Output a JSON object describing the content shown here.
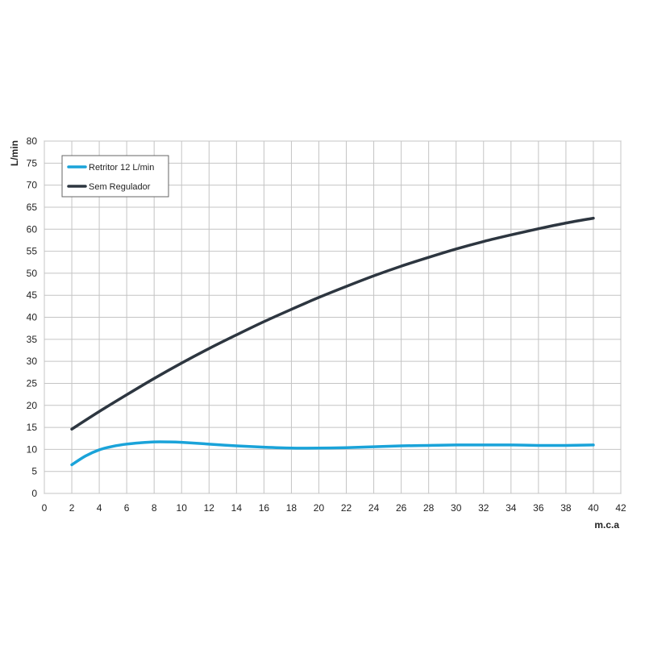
{
  "chart_data": {
    "type": "line",
    "xlabel": "m.c.a",
    "ylabel": "L/min",
    "xlim": [
      0,
      42
    ],
    "ylim": [
      0,
      80
    ],
    "x_ticks": [
      0,
      2,
      4,
      6,
      8,
      10,
      12,
      14,
      16,
      18,
      20,
      22,
      24,
      26,
      28,
      30,
      32,
      34,
      36,
      38,
      40,
      42
    ],
    "y_ticks": [
      0,
      5,
      10,
      15,
      20,
      25,
      30,
      35,
      40,
      45,
      50,
      55,
      60,
      65,
      70,
      75,
      80
    ],
    "grid": true,
    "legend_position": "top-left",
    "series": [
      {
        "name": "Retritor 12 L/min",
        "color": "#1aa3d9",
        "x": [
          2,
          3,
          4,
          5,
          6,
          7,
          8,
          9,
          10,
          12,
          14,
          16,
          18,
          20,
          22,
          24,
          26,
          28,
          30,
          32,
          34,
          36,
          38,
          40
        ],
        "y": [
          6.5,
          8.5,
          9.9,
          10.7,
          11.2,
          11.5,
          11.7,
          11.7,
          11.6,
          11.2,
          10.8,
          10.5,
          10.3,
          10.3,
          10.4,
          10.6,
          10.8,
          10.9,
          11.0,
          11.0,
          11.0,
          10.9,
          10.9,
          11.0
        ]
      },
      {
        "name": "Sem Regulador",
        "color": "#2d3640",
        "x": [
          2,
          4,
          6,
          8,
          10,
          12,
          14,
          16,
          18,
          20,
          22,
          24,
          26,
          28,
          30,
          32,
          34,
          36,
          38,
          40
        ],
        "y": [
          14.6,
          18.6,
          22.4,
          26.1,
          29.6,
          32.9,
          36.0,
          39.0,
          41.8,
          44.5,
          47.0,
          49.4,
          51.6,
          53.6,
          55.5,
          57.2,
          58.7,
          60.1,
          61.4,
          62.5
        ]
      }
    ]
  }
}
